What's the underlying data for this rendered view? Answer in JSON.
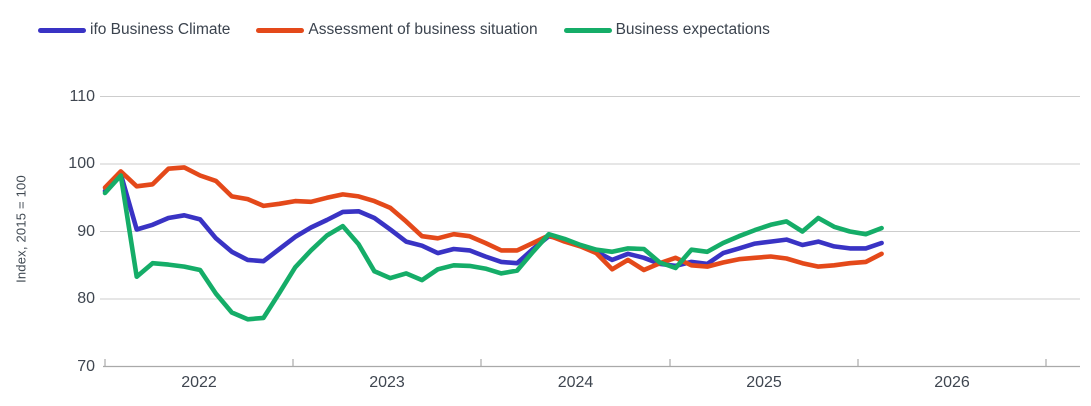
{
  "chart_data": {
    "type": "line",
    "title": "",
    "y_axis_title": "Index, 2015 = 100",
    "ylim": [
      70,
      110
    ],
    "y_ticks": [
      110,
      100,
      90,
      80,
      70
    ],
    "x_year_labels": [
      "2022",
      "2023",
      "2024",
      "2025",
      "2026"
    ],
    "x_start": "Jan 2022",
    "x_step": "1 month",
    "grid": "horizontal",
    "legend_position": "top-left",
    "series": [
      {
        "name": "ifo Business Climate",
        "color": "#3933c4",
        "values": [
          96.0,
          98.5,
          90.3,
          91.0,
          92.0,
          92.4,
          91.8,
          89.0,
          87.0,
          85.8,
          85.6,
          87.4,
          89.2,
          90.6,
          91.7,
          92.9,
          93.0,
          92.0,
          90.3,
          88.5,
          87.9,
          86.8,
          87.4,
          87.2,
          86.3,
          85.5,
          85.3,
          87.4,
          89.3,
          88.8,
          87.9,
          87.0,
          85.8,
          86.7,
          86.1,
          85.2,
          84.9,
          85.5,
          85.2,
          86.8,
          87.5,
          88.2,
          88.5,
          88.8,
          88.0,
          88.5,
          87.8,
          87.5,
          87.5,
          88.3
        ]
      },
      {
        "name": "Assessment of business situation",
        "color": "#e4491a",
        "values": [
          96.5,
          98.9,
          96.7,
          97.0,
          99.3,
          99.5,
          98.3,
          97.5,
          95.2,
          94.8,
          93.8,
          94.1,
          94.5,
          94.4,
          95.0,
          95.5,
          95.2,
          94.5,
          93.5,
          91.5,
          89.3,
          89.0,
          89.6,
          89.3,
          88.3,
          87.2,
          87.2,
          88.3,
          89.4,
          88.5,
          87.8,
          86.8,
          84.4,
          85.8,
          84.3,
          85.3,
          86.1,
          85.0,
          84.8,
          85.4,
          85.9,
          86.1,
          86.3,
          86.0,
          85.3,
          84.8,
          85.0,
          85.3,
          85.5,
          86.7
        ]
      },
      {
        "name": "Business expectations",
        "color": "#15ad68",
        "values": [
          95.7,
          98.3,
          83.3,
          85.3,
          85.1,
          84.8,
          84.3,
          80.8,
          78.0,
          77.0,
          77.2,
          80.9,
          84.7,
          87.2,
          89.4,
          90.8,
          88.1,
          84.1,
          83.1,
          83.8,
          82.8,
          84.4,
          85.0,
          84.9,
          84.5,
          83.8,
          84.2,
          87.0,
          89.6,
          88.9,
          88.0,
          87.3,
          87.0,
          87.5,
          87.4,
          85.4,
          84.6,
          87.3,
          87.0,
          88.3,
          89.3,
          90.2,
          91.0,
          91.5,
          90.0,
          92.0,
          90.7,
          90.0,
          89.6,
          90.5
        ]
      }
    ]
  },
  "colors": {
    "gridline": "#cdcdcd",
    "axis": "#a9a9a9",
    "tick_text": "#3f4650",
    "legend_text": "#3b434e"
  }
}
